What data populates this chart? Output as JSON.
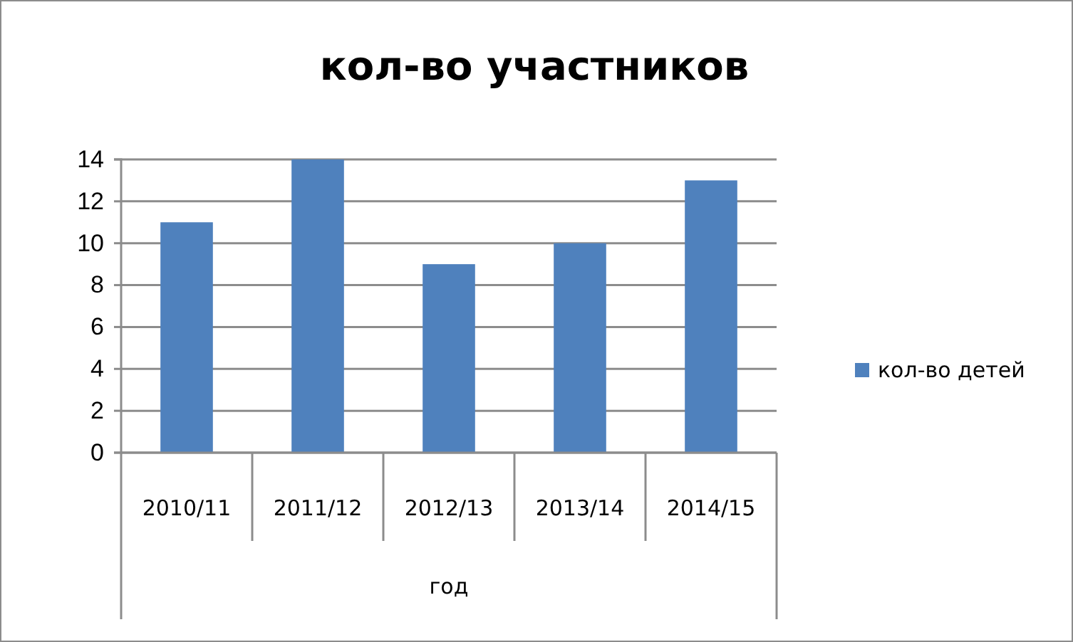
{
  "chart_data": {
    "type": "bar",
    "title": "кол-во участников",
    "categories": [
      "2010/11",
      "2011/12",
      "2012/13",
      "2013/14",
      "2014/15"
    ],
    "series": [
      {
        "name": "кол-во детей",
        "color": "#4f81bd",
        "values": [
          11,
          14,
          9,
          10,
          13
        ]
      }
    ],
    "xlabel": "год",
    "ylim": [
      0,
      14
    ],
    "yticks": [
      0,
      2,
      4,
      6,
      8,
      10,
      12,
      14
    ],
    "grid": "y",
    "legend": "right"
  }
}
